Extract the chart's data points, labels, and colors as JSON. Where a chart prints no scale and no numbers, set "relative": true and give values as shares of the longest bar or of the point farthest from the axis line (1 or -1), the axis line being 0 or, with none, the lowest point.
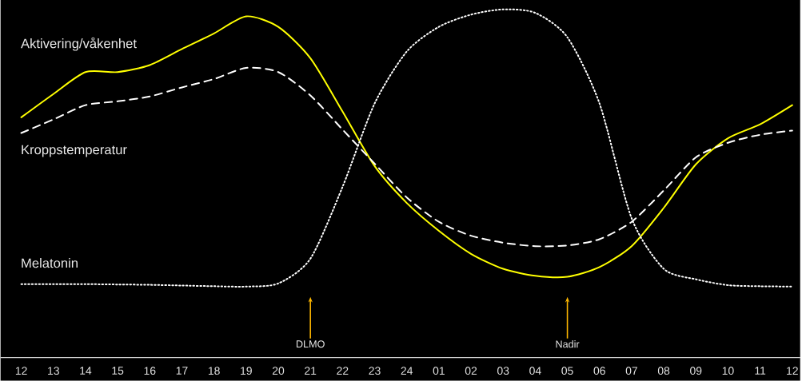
{
  "chart_data": {
    "type": "line",
    "relative": true,
    "tick_labels": "x",
    "categories": [
      "12",
      "13",
      "14",
      "15",
      "16",
      "17",
      "18",
      "19",
      "20",
      "21",
      "22",
      "23",
      "24",
      "01",
      "02",
      "03",
      "04",
      "05",
      "06",
      "07",
      "08",
      "09",
      "10",
      "11",
      "12"
    ],
    "series": [
      {
        "name": "Aktivering/våkenhet",
        "color": "#ffff00",
        "line_style": "solid",
        "values": [
          0.69,
          0.757,
          0.82,
          0.82,
          0.84,
          0.886,
          0.931,
          0.98,
          0.95,
          0.86,
          0.707,
          0.55,
          0.444,
          0.364,
          0.298,
          0.255,
          0.235,
          0.232,
          0.26,
          0.32,
          0.43,
          0.555,
          0.63,
          0.67,
          0.725
        ]
      },
      {
        "name": "Kroppstemperatur",
        "color": "#ffffff",
        "line_style": "dashed",
        "values": [
          0.645,
          0.684,
          0.725,
          0.736,
          0.75,
          0.776,
          0.8,
          0.832,
          0.82,
          0.753,
          0.655,
          0.557,
          0.46,
          0.39,
          0.35,
          0.33,
          0.32,
          0.322,
          0.34,
          0.39,
          0.48,
          0.575,
          0.617,
          0.64,
          0.652
        ]
      },
      {
        "name": "Melatonin",
        "color": "#ffffff",
        "line_style": "dotted",
        "values": [
          0.211,
          0.211,
          0.211,
          0.21,
          0.209,
          0.207,
          0.205,
          0.204,
          0.213,
          0.284,
          0.49,
          0.73,
          0.879,
          0.95,
          0.985,
          1.0,
          0.99,
          0.92,
          0.73,
          0.4,
          0.255,
          0.225,
          0.208,
          0.205,
          0.204
        ]
      }
    ],
    "annotations": [
      {
        "text": "DLMO",
        "x": "21"
      },
      {
        "text": "Nadir",
        "x": "05"
      }
    ]
  }
}
